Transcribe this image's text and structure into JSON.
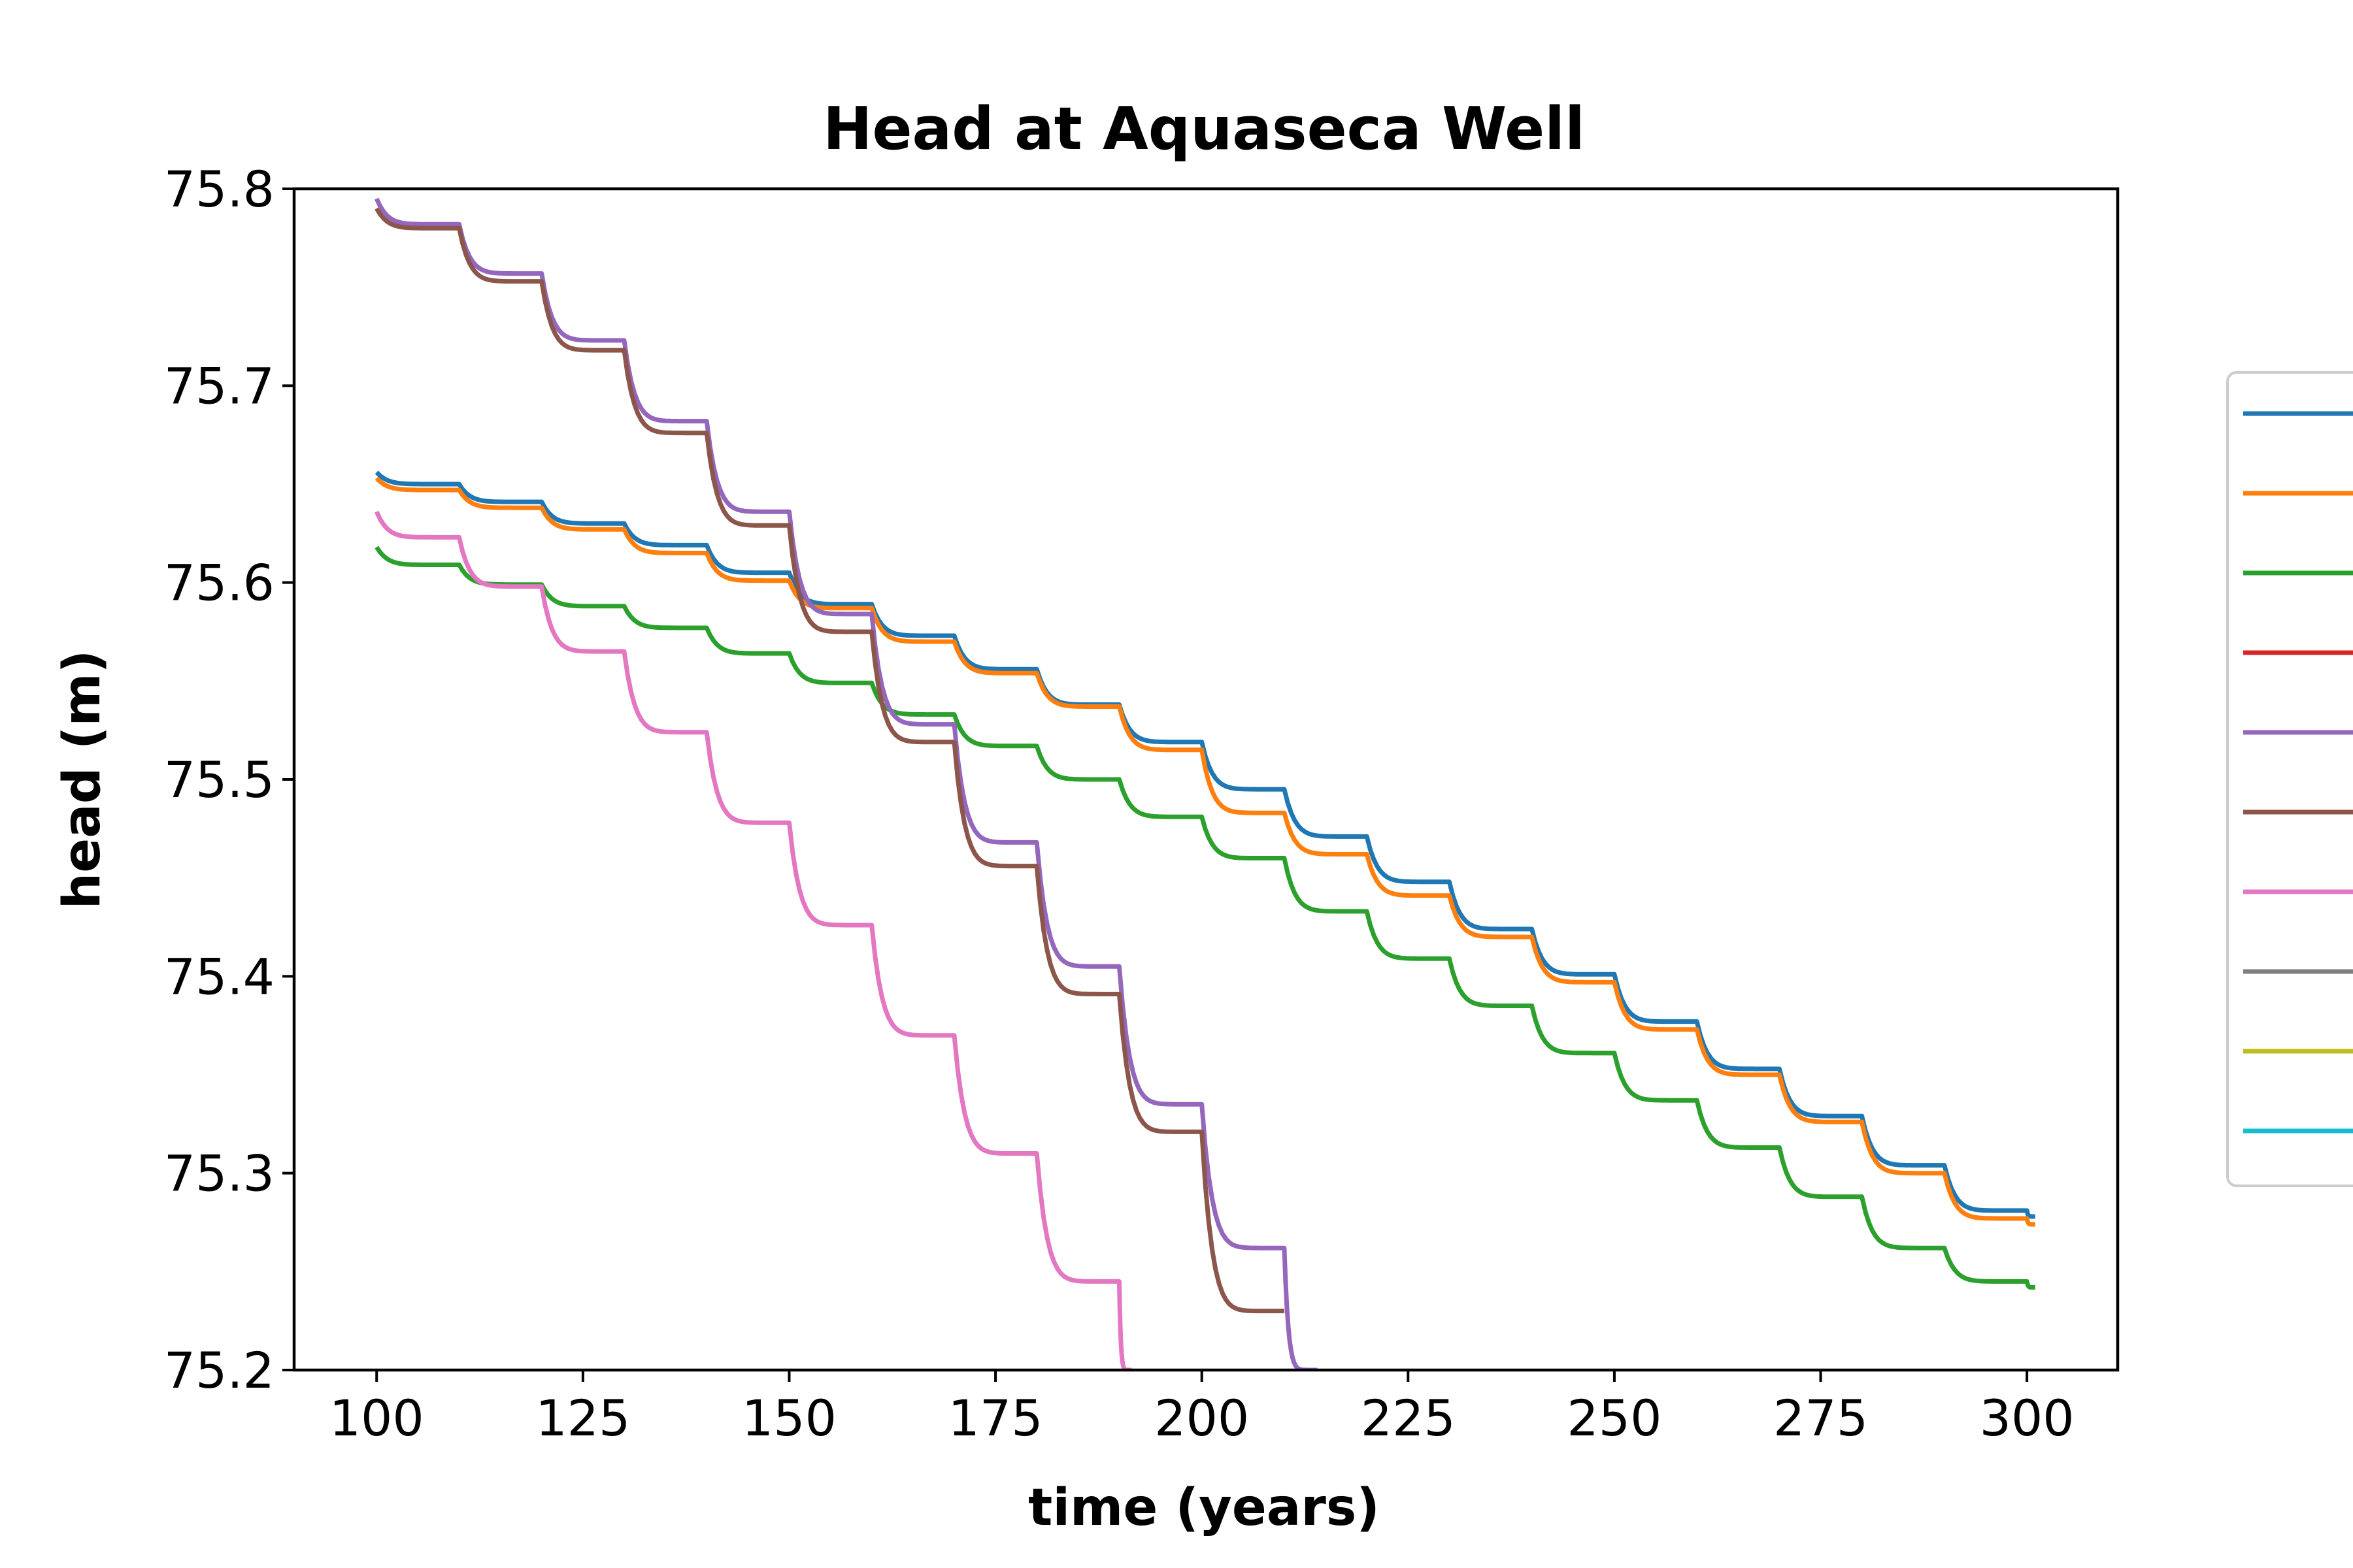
{
  "chart_data": {
    "type": "line",
    "title": "Head at Aquaseca Well",
    "xlabel": "time (years)",
    "ylabel": "head (m)",
    "xlim": [
      90,
      311
    ],
    "ylim": [
      75.2,
      75.8
    ],
    "xticks": [
      100,
      125,
      150,
      175,
      200,
      225,
      250,
      275,
      300
    ],
    "yticks": [
      75.2,
      75.3,
      75.4,
      75.5,
      75.6,
      75.7,
      75.8
    ],
    "xtick_labels": [
      "100",
      "125",
      "150",
      "175",
      "200",
      "225",
      "250",
      "275",
      "300"
    ],
    "ytick_labels": [
      "75.2",
      "75.3",
      "75.4",
      "75.5",
      "75.6",
      "75.7",
      "75.8"
    ],
    "grid": false,
    "legend": "right, partially cut off, entries unlabeled",
    "series": [
      {
        "color": "#1f77b4",
        "x": [
          100,
          110,
          120,
          130,
          140,
          150,
          160,
          170,
          180,
          190,
          200,
          210,
          220,
          230,
          240,
          250,
          260,
          270,
          280,
          290,
          300,
          301
        ],
        "y": [
          75.656,
          75.65,
          75.641,
          75.63,
          75.619,
          75.605,
          75.589,
          75.573,
          75.556,
          75.538,
          75.519,
          75.495,
          75.471,
          75.448,
          75.424,
          75.401,
          75.377,
          75.353,
          75.329,
          75.304,
          75.281,
          75.278
        ]
      },
      {
        "color": "#ff7f0e",
        "x": [
          100,
          110,
          120,
          130,
          140,
          150,
          160,
          170,
          180,
          190,
          200,
          210,
          220,
          230,
          240,
          250,
          260,
          270,
          280,
          290,
          300,
          301
        ],
        "y": [
          75.653,
          75.647,
          75.638,
          75.627,
          75.615,
          75.601,
          75.587,
          75.57,
          75.554,
          75.537,
          75.515,
          75.483,
          75.462,
          75.441,
          75.42,
          75.397,
          75.373,
          75.35,
          75.326,
          75.3,
          75.277,
          75.274
        ]
      },
      {
        "color": "#2ca02c",
        "x": [
          100,
          110,
          120,
          130,
          140,
          150,
          160,
          170,
          180,
          190,
          200,
          210,
          220,
          230,
          240,
          250,
          260,
          270,
          280,
          290,
          300,
          301
        ],
        "y": [
          75.618,
          75.609,
          75.599,
          75.588,
          75.577,
          75.564,
          75.549,
          75.533,
          75.517,
          75.5,
          75.481,
          75.46,
          75.433,
          75.409,
          75.385,
          75.361,
          75.337,
          75.313,
          75.288,
          75.262,
          75.245,
          75.242
        ]
      },
      {
        "color": "#d62728",
        "x": [],
        "y": []
      },
      {
        "color": "#9467bd",
        "x": [
          100,
          110,
          120,
          130,
          140,
          150,
          160,
          170,
          180,
          190,
          200,
          210,
          214
        ],
        "y": [
          75.795,
          75.782,
          75.757,
          75.723,
          75.682,
          75.636,
          75.584,
          75.528,
          75.468,
          75.405,
          75.335,
          75.262,
          75.2
        ]
      },
      {
        "color": "#8c564b",
        "x": [
          100,
          110,
          120,
          130,
          140,
          150,
          160,
          170,
          180,
          190,
          200,
          210
        ],
        "y": [
          75.79,
          75.78,
          75.753,
          75.718,
          75.676,
          75.629,
          75.575,
          75.519,
          75.456,
          75.391,
          75.321,
          75.23
        ]
      },
      {
        "color": "#e377c2",
        "x": [
          100,
          110,
          120,
          130,
          140,
          150,
          160,
          170,
          180,
          190,
          191.5
        ],
        "y": [
          75.636,
          75.623,
          75.598,
          75.565,
          75.524,
          75.478,
          75.426,
          75.37,
          75.31,
          75.245,
          75.2
        ]
      },
      {
        "color": "#7f7f7f",
        "x": [],
        "y": []
      },
      {
        "color": "#bcbd22",
        "x": [],
        "y": []
      },
      {
        "color": "#17becf",
        "x": [],
        "y": []
      }
    ]
  }
}
